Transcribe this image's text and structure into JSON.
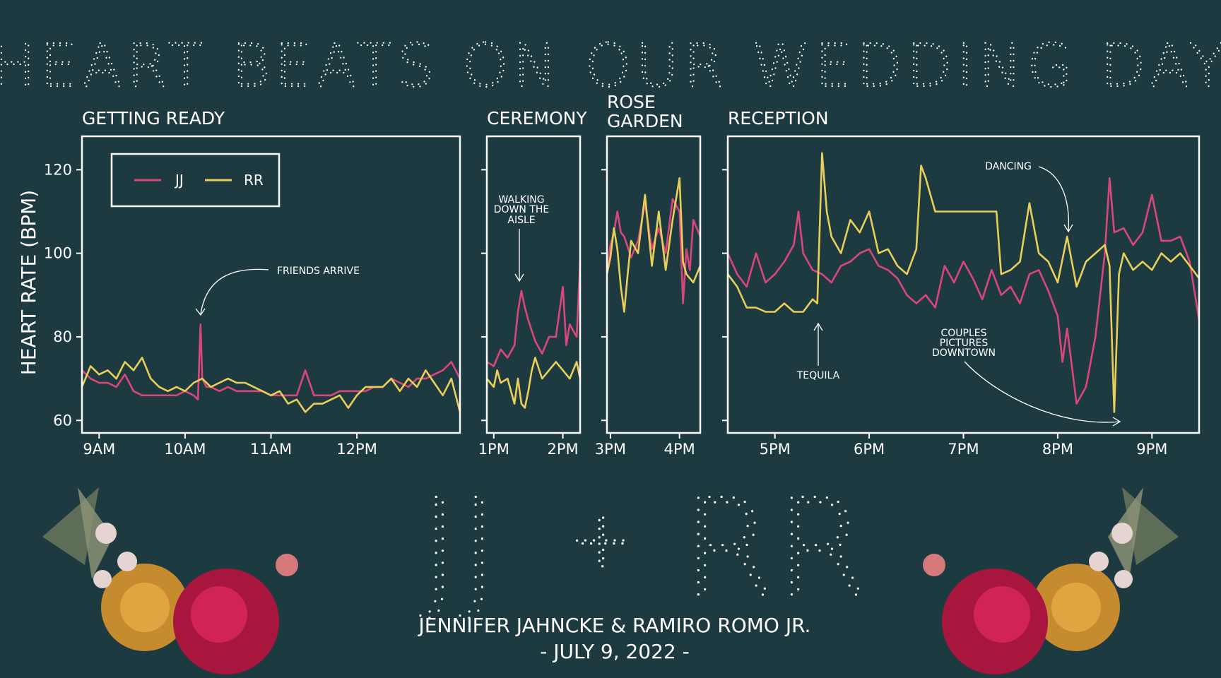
{
  "title": "HEART BEATS ON OUR WEDDING DAY",
  "ylabel": "HEART RATE (BPM)",
  "monogram": {
    "left": "JJ",
    "plus": "+",
    "right": "RR"
  },
  "names": "JENNIFER JAHNCKE & RAMIRO ROMO JR.",
  "date": "- JULY 9, 2022 -",
  "colors": {
    "background": "#1d3a40",
    "jj": "#d9477a",
    "rr": "#e8cf5a",
    "text": "#ffffff"
  },
  "legend": [
    {
      "label": "JJ",
      "color": "#d9477a"
    },
    {
      "label": "RR",
      "color": "#e8cf5a"
    }
  ],
  "chart_data": [
    {
      "type": "line",
      "panel": "getting-ready",
      "title": "GETTING READY",
      "x_unit": "hours",
      "xlim": [
        8.8,
        13.2
      ],
      "ylim": [
        57,
        128
      ],
      "yticks": [
        60,
        80,
        100,
        120
      ],
      "xticks": [
        9,
        10,
        11,
        12
      ],
      "xtick_labels": [
        "9AM",
        "10AM",
        "11AM",
        "12PM"
      ],
      "series": [
        {
          "name": "JJ",
          "color": "#d9477a",
          "x": [
            8.8,
            8.9,
            9.0,
            9.1,
            9.2,
            9.3,
            9.4,
            9.5,
            9.6,
            9.7,
            9.8,
            9.9,
            10.0,
            10.1,
            10.15,
            10.18,
            10.2,
            10.25,
            10.3,
            10.4,
            10.5,
            10.6,
            10.7,
            10.8,
            10.9,
            11.0,
            11.1,
            11.2,
            11.3,
            11.4,
            11.5,
            11.6,
            11.7,
            11.8,
            11.9,
            12.0,
            12.1,
            12.2,
            12.3,
            12.4,
            12.5,
            12.6,
            12.7,
            12.8,
            12.9,
            13.0,
            13.1,
            13.2
          ],
          "y": [
            72,
            70,
            69,
            69,
            68,
            71,
            67,
            66,
            66,
            66,
            66,
            66,
            67,
            66,
            65,
            83,
            70,
            68,
            68,
            67,
            68,
            67,
            67,
            67,
            67,
            66,
            66,
            66,
            66,
            72,
            66,
            66,
            66,
            67,
            67,
            67,
            67,
            68,
            68,
            70,
            69,
            68,
            70,
            70,
            71,
            72,
            74,
            70
          ]
        },
        {
          "name": "RR",
          "color": "#e8cf5a",
          "x": [
            8.8,
            8.9,
            9.0,
            9.1,
            9.2,
            9.3,
            9.4,
            9.5,
            9.6,
            9.7,
            9.8,
            9.9,
            10.0,
            10.1,
            10.2,
            10.3,
            10.4,
            10.5,
            10.6,
            10.7,
            10.8,
            10.9,
            11.0,
            11.1,
            11.2,
            11.3,
            11.4,
            11.5,
            11.6,
            11.7,
            11.8,
            11.9,
            12.0,
            12.1,
            12.2,
            12.3,
            12.4,
            12.5,
            12.6,
            12.7,
            12.8,
            12.9,
            13.0,
            13.1,
            13.2
          ],
          "y": [
            68,
            73,
            71,
            72,
            70,
            74,
            72,
            75,
            70,
            68,
            67,
            68,
            67,
            69,
            70,
            68,
            69,
            70,
            69,
            69,
            68,
            67,
            66,
            67,
            64,
            65,
            62,
            64,
            64,
            65,
            66,
            63,
            66,
            68,
            68,
            68,
            70,
            67,
            70,
            68,
            72,
            69,
            66,
            70,
            62
          ]
        }
      ]
    },
    {
      "type": "line",
      "panel": "ceremony",
      "title": "CEREMONY",
      "x_unit": "hours",
      "xlim": [
        12.9,
        14.25
      ],
      "ylim": [
        57,
        128
      ],
      "yticks": [
        60,
        80,
        100,
        120
      ],
      "xticks": [
        13,
        14
      ],
      "xtick_labels": [
        "1PM",
        "2PM"
      ],
      "series": [
        {
          "name": "JJ",
          "color": "#d9477a",
          "x": [
            12.9,
            13.0,
            13.1,
            13.2,
            13.3,
            13.35,
            13.4,
            13.45,
            13.5,
            13.6,
            13.7,
            13.8,
            13.9,
            14.0,
            14.05,
            14.1,
            14.2,
            14.25
          ],
          "y": [
            74,
            73,
            77,
            75,
            78,
            86,
            91,
            87,
            84,
            79,
            76,
            80,
            80,
            92,
            78,
            83,
            80,
            98
          ]
        },
        {
          "name": "RR",
          "color": "#e8cf5a",
          "x": [
            12.9,
            13.0,
            13.05,
            13.1,
            13.2,
            13.3,
            13.35,
            13.4,
            13.45,
            13.5,
            13.55,
            13.6,
            13.7,
            13.8,
            13.9,
            14.0,
            14.1,
            14.2,
            14.25
          ],
          "y": [
            70,
            68,
            72,
            69,
            70,
            64,
            70,
            64,
            63,
            67,
            72,
            75,
            70,
            72,
            74,
            72,
            70,
            74,
            70
          ]
        }
      ]
    },
    {
      "type": "line",
      "panel": "rose-garden",
      "title": "ROSE GARDEN",
      "x_unit": "hours",
      "xlim": [
        14.95,
        16.3
      ],
      "ylim": [
        57,
        128
      ],
      "yticks": [
        60,
        80,
        100,
        120
      ],
      "xticks": [
        15,
        16
      ],
      "xtick_labels": [
        "3PM",
        "4PM"
      ],
      "series": [
        {
          "name": "JJ",
          "color": "#d9477a",
          "x": [
            14.95,
            15.0,
            15.05,
            15.1,
            15.15,
            15.2,
            15.3,
            15.4,
            15.5,
            15.6,
            15.7,
            15.8,
            15.9,
            16.0,
            16.05,
            16.1,
            16.15,
            16.2,
            16.3
          ],
          "y": [
            96,
            102,
            105,
            110,
            105,
            104,
            99,
            103,
            112,
            101,
            106,
            100,
            113,
            110,
            88,
            101,
            96,
            108,
            104
          ]
        },
        {
          "name": "RR",
          "color": "#e8cf5a",
          "x": [
            14.95,
            15.0,
            15.05,
            15.1,
            15.15,
            15.2,
            15.25,
            15.3,
            15.4,
            15.5,
            15.6,
            15.7,
            15.8,
            15.9,
            16.0,
            16.05,
            16.1,
            16.2,
            16.3
          ],
          "y": [
            95,
            99,
            106,
            101,
            92,
            86,
            95,
            103,
            100,
            114,
            97,
            110,
            96,
            108,
            118,
            98,
            95,
            93,
            97
          ]
        }
      ]
    },
    {
      "type": "line",
      "panel": "reception",
      "title": "RECEPTION",
      "x_unit": "hours",
      "xlim": [
        16.5,
        21.5
      ],
      "ylim": [
        57,
        128
      ],
      "yticks": [
        60,
        80,
        100,
        120
      ],
      "xticks": [
        17,
        18,
        19,
        20,
        21
      ],
      "xtick_labels": [
        "5PM",
        "6PM",
        "7PM",
        "8PM",
        "9PM"
      ],
      "series": [
        {
          "name": "JJ",
          "color": "#d9477a",
          "x": [
            16.5,
            16.6,
            16.7,
            16.8,
            16.9,
            17.0,
            17.1,
            17.2,
            17.25,
            17.3,
            17.4,
            17.5,
            17.6,
            17.7,
            17.8,
            17.9,
            18.0,
            18.1,
            18.2,
            18.3,
            18.4,
            18.5,
            18.6,
            18.7,
            18.8,
            18.9,
            19.0,
            19.1,
            19.2,
            19.3,
            19.4,
            19.5,
            19.6,
            19.7,
            19.8,
            19.9,
            20.0,
            20.05,
            20.1,
            20.2,
            20.3,
            20.4,
            20.5,
            20.55,
            20.6,
            20.7,
            20.8,
            20.9,
            21.0,
            21.1,
            21.2,
            21.3,
            21.4,
            21.5
          ],
          "y": [
            100,
            95,
            92,
            100,
            93,
            95,
            98,
            102,
            110,
            100,
            96,
            95,
            93,
            97,
            98,
            100,
            101,
            97,
            96,
            94,
            90,
            88,
            90,
            87,
            97,
            93,
            98,
            94,
            89,
            96,
            90,
            92,
            88,
            95,
            96,
            91,
            85,
            74,
            82,
            64,
            68,
            80,
            100,
            118,
            105,
            106,
            102,
            105,
            114,
            103,
            103,
            104,
            98,
            84
          ]
        },
        {
          "name": "RR",
          "color": "#e8cf5a",
          "x": [
            16.5,
            16.6,
            16.7,
            16.8,
            16.9,
            17.0,
            17.1,
            17.2,
            17.3,
            17.4,
            17.45,
            17.5,
            17.55,
            17.6,
            17.7,
            17.8,
            17.9,
            18.0,
            18.1,
            18.2,
            18.3,
            18.4,
            18.5,
            18.55,
            18.6,
            18.7,
            18.8,
            18.9,
            19.0,
            19.1,
            19.2,
            19.3,
            19.35,
            19.4,
            19.5,
            19.6,
            19.7,
            19.8,
            19.9,
            20.0,
            20.1,
            20.2,
            20.3,
            20.4,
            20.5,
            20.55,
            20.6,
            20.65,
            20.7,
            20.8,
            20.9,
            21.0,
            21.1,
            21.2,
            21.3,
            21.4,
            21.5
          ],
          "y": [
            95,
            92,
            87,
            87,
            86,
            86,
            88,
            86,
            86,
            89,
            88,
            124,
            110,
            104,
            100,
            108,
            105,
            110,
            100,
            101,
            97,
            95,
            101,
            121,
            118,
            110,
            110,
            110,
            110,
            110,
            110,
            110,
            110,
            95,
            96,
            98,
            112,
            100,
            98,
            93,
            104,
            92,
            98,
            100,
            102,
            97,
            62,
            95,
            100,
            96,
            98,
            96,
            100,
            98,
            100,
            97,
            94
          ]
        }
      ]
    }
  ],
  "annotations": [
    {
      "text": "FRIENDS ARRIVE",
      "panel": "getting-ready"
    },
    {
      "text": "WALKING DOWN THE AISLE",
      "panel": "ceremony"
    },
    {
      "text": "TEQUILA",
      "panel": "reception"
    },
    {
      "text": "DANCING",
      "panel": "reception"
    },
    {
      "text": "COUPLES PICTURES DOWNTOWN",
      "panel": "reception"
    }
  ]
}
